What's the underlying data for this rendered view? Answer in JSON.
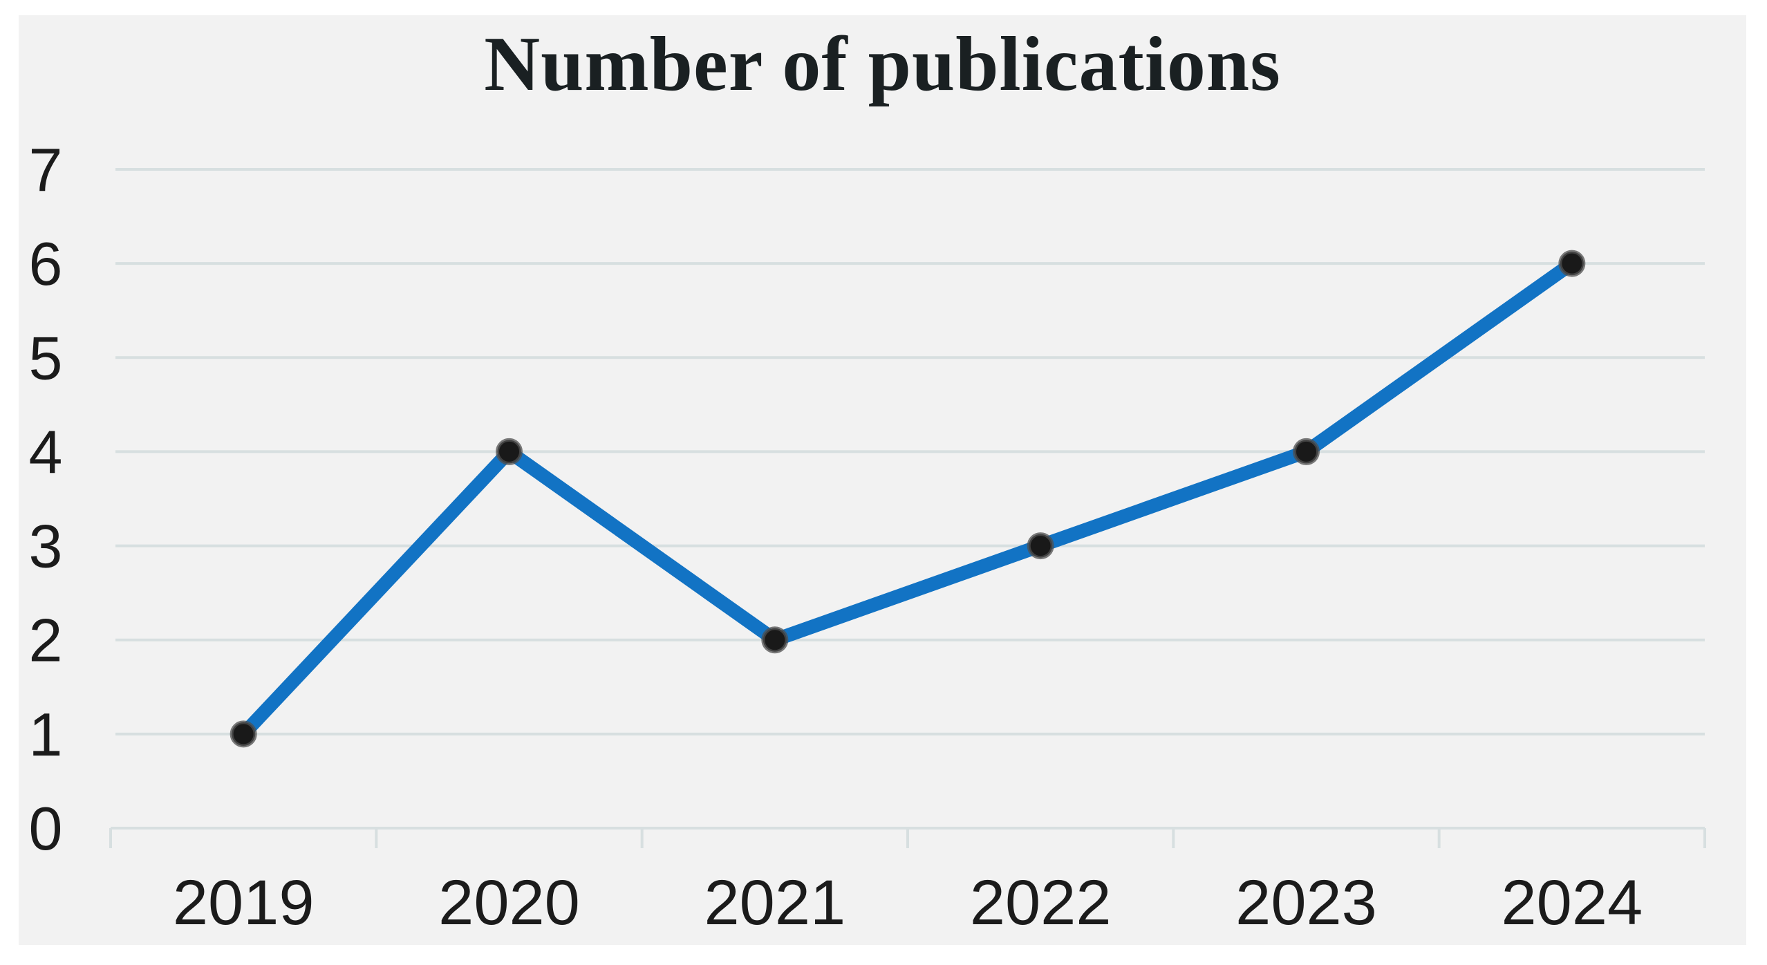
{
  "page": {
    "background": "#ffffff",
    "panel_background": "#f2f2f2"
  },
  "chart_data": {
    "type": "line",
    "title": "Number of publications",
    "categories": [
      "2019",
      "2020",
      "2021",
      "2022",
      "2023",
      "2024"
    ],
    "series": [
      {
        "name": "Number of publications",
        "values": [
          1,
          4,
          2,
          3,
          4,
          6
        ]
      }
    ],
    "xlabel": "",
    "ylabel": "",
    "ylim": [
      0,
      7
    ],
    "yticks": [
      0,
      1,
      2,
      3,
      4,
      5,
      6,
      7
    ],
    "grid": "horizontal",
    "legend_position": "none",
    "colors": {
      "line": "#1273c4",
      "marker_fill": "#191919",
      "marker_ring": "#4f4f4f",
      "gridline": "#d7dfe0",
      "axis": "#d7dfe0",
      "title_text": "#1a2022",
      "tick_text": "#1b1b1b"
    }
  }
}
